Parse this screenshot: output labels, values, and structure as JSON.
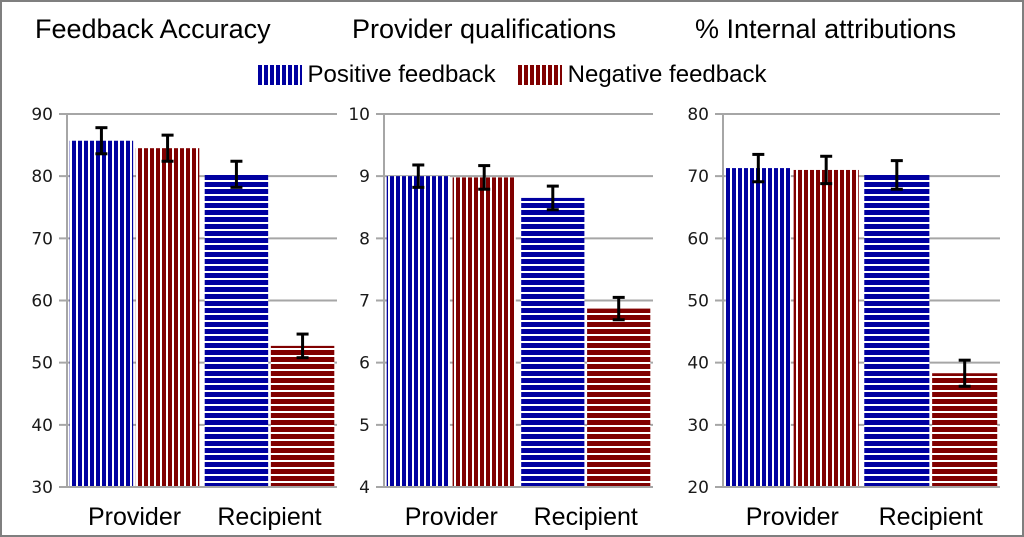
{
  "legend": {
    "items": [
      {
        "label": "Positive feedback",
        "color": "#0000a0"
      },
      {
        "label": "Negative feedback",
        "color": "#800000"
      }
    ]
  },
  "chart_data": [
    {
      "type": "bar",
      "title": "Feedback Accuracy",
      "categories": [
        "Provider",
        "Recipient"
      ],
      "series": [
        {
          "name": "Positive feedback",
          "values": [
            85.7,
            80.3
          ],
          "errors": [
            2.1,
            2.1
          ]
        },
        {
          "name": "Negative feedback",
          "values": [
            84.5,
            52.7
          ],
          "errors": [
            2.1,
            1.9
          ]
        }
      ],
      "ylim": [
        30,
        90
      ],
      "yticks": [
        "30",
        "40",
        "50",
        "60",
        "70",
        "80",
        "90"
      ],
      "grid": true,
      "xlabel": "",
      "ylabel": ""
    },
    {
      "type": "bar",
      "title": "Provider qualifications",
      "categories": [
        "Provider",
        "Recipient"
      ],
      "series": [
        {
          "name": "Positive feedback",
          "values": [
            9.0,
            8.65
          ],
          "errors": [
            0.18,
            0.19
          ]
        },
        {
          "name": "Negative feedback",
          "values": [
            8.98,
            6.87
          ],
          "errors": [
            0.19,
            0.18
          ]
        }
      ],
      "ylim": [
        4,
        10
      ],
      "yticks": [
        "4",
        "5",
        "6",
        "7",
        "8",
        "9",
        "10"
      ],
      "grid": true,
      "xlabel": "",
      "ylabel": ""
    },
    {
      "type": "bar",
      "title": "% Internal attributions",
      "categories": [
        "Provider",
        "Recipient"
      ],
      "series": [
        {
          "name": "Positive feedback",
          "values": [
            71.3,
            70.2
          ],
          "errors": [
            2.2,
            2.3
          ]
        },
        {
          "name": "Negative feedback",
          "values": [
            71.0,
            38.3
          ],
          "errors": [
            2.2,
            2.1
          ]
        }
      ],
      "ylim": [
        20,
        80
      ],
      "yticks": [
        "20",
        "30",
        "40",
        "50",
        "60",
        "70",
        "80"
      ],
      "grid": true,
      "xlabel": "",
      "ylabel": ""
    }
  ]
}
